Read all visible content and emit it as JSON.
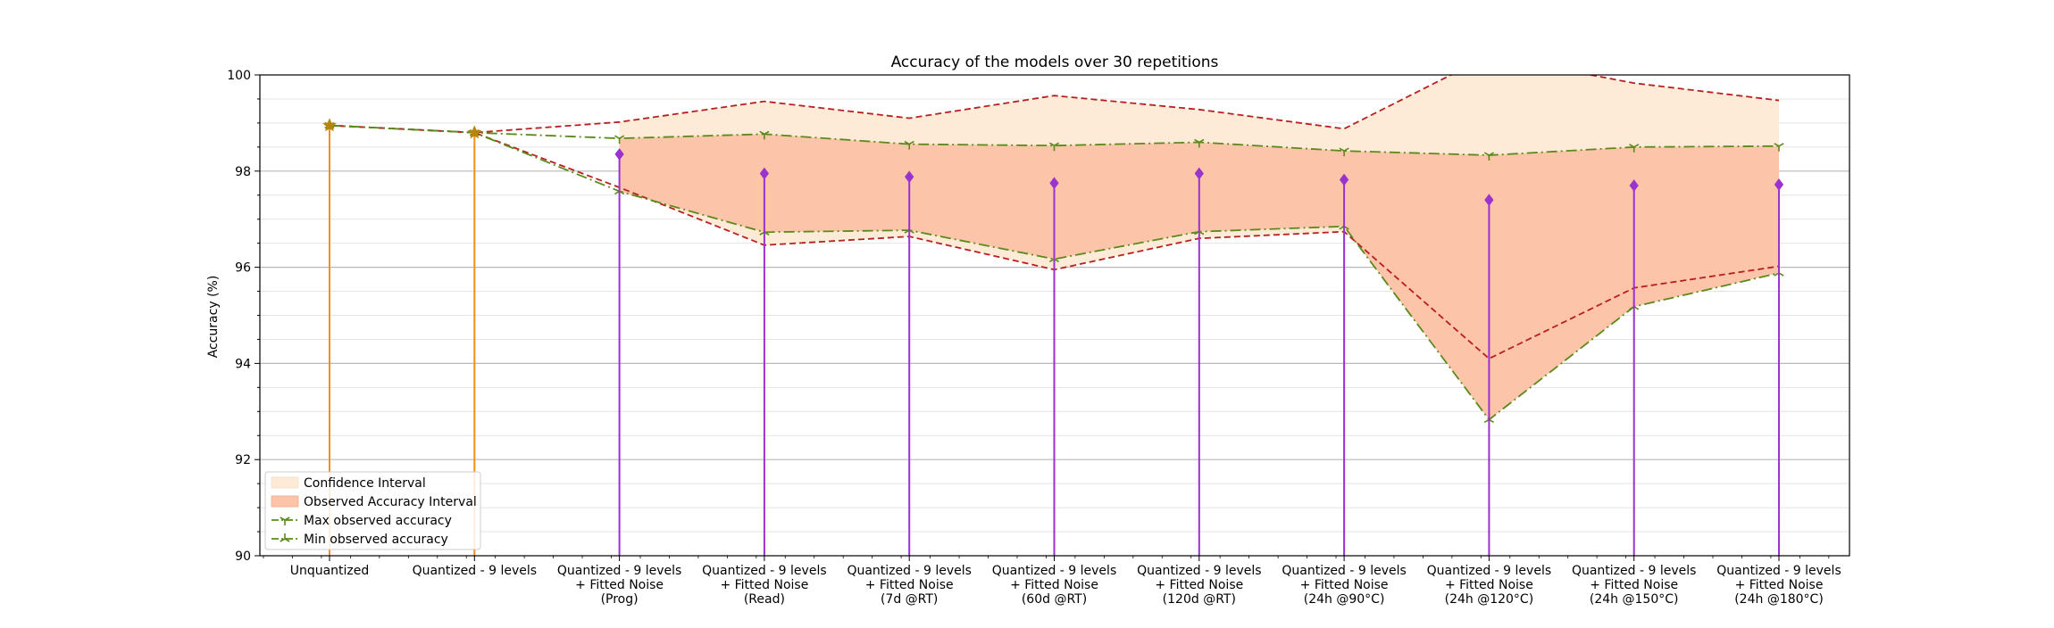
{
  "chart_data": {
    "type": "line",
    "title": "Accuracy of the models over 30 repetitions",
    "xlabel": "",
    "ylabel": "Accuracy (%)",
    "ylim": [
      90,
      100
    ],
    "yticks": [
      90,
      92,
      94,
      96,
      98,
      100
    ],
    "y_minor_step": 0.5,
    "grid": true,
    "legend_position": "lower-left",
    "categories": [
      "Unquantized",
      "Quantized - 9 levels",
      "Quantized - 9 levels\n+ Fitted Noise\n(Prog)",
      "Quantized - 9 levels\n+ Fitted Noise\n(Read)",
      "Quantized - 9 levels\n+ Fitted Noise\n(7d @RT)",
      "Quantized - 9 levels\n+ Fitted Noise\n(60d @RT)",
      "Quantized - 9 levels\n+ Fitted Noise\n(120d @RT)",
      "Quantized - 9 levels\n+ Fitted Noise\n(24h @90°C)",
      "Quantized - 9 levels\n+ Fitted Noise\n(24h @120°C)",
      "Quantized - 9 levels\n+ Fitted Noise\n(24h @150°C)",
      "Quantized - 9 levels\n+ Fitted Noise\n(24h @180°C)"
    ],
    "mean_accuracy": [
      98.95,
      98.8,
      98.35,
      97.95,
      97.88,
      97.75,
      97.95,
      97.82,
      97.4,
      97.7,
      97.72
    ],
    "confidence_interval": {
      "upper": [
        98.95,
        98.8,
        99.02,
        99.45,
        99.1,
        99.57,
        99.28,
        98.88,
        100.4,
        99.83,
        99.47
      ],
      "lower": [
        98.95,
        98.8,
        97.66,
        96.46,
        96.64,
        95.95,
        96.6,
        96.74,
        94.1,
        95.57,
        96.02
      ]
    },
    "series": [
      {
        "name": "Max observed accuracy",
        "values": [
          98.95,
          98.8,
          98.68,
          98.77,
          98.56,
          98.53,
          98.6,
          98.42,
          98.33,
          98.5,
          98.52
        ]
      },
      {
        "name": "Min observed accuracy",
        "values": [
          98.95,
          98.8,
          97.58,
          96.73,
          96.77,
          96.17,
          96.74,
          96.85,
          92.83,
          95.18,
          95.88
        ]
      }
    ],
    "legend": [
      {
        "label": "Confidence Interval",
        "kind": "patch",
        "color": "#fdebd8"
      },
      {
        "label": "Observed Accuracy Interval",
        "kind": "patch",
        "color": "#fcc4a8"
      },
      {
        "label": "Max observed accuracy",
        "kind": "line",
        "color": "#5b8a1a",
        "marker": "tri_down"
      },
      {
        "label": "Min observed accuracy",
        "kind": "line",
        "color": "#5b8a1a",
        "marker": "tri_up"
      }
    ],
    "colors": {
      "confidence_fill": "#fdebd8",
      "observed_fill": "#fcc4a8",
      "ci_line": "#b81f1f",
      "minmax_line": "#5b8a1a",
      "stem_baseline_models": "#f28e1c",
      "stem_noise_models": "#9a32cd",
      "baseline_marker": "#b5860b",
      "grid_major": "#b8b8b8",
      "grid_minor": "#e4e4e4"
    }
  }
}
